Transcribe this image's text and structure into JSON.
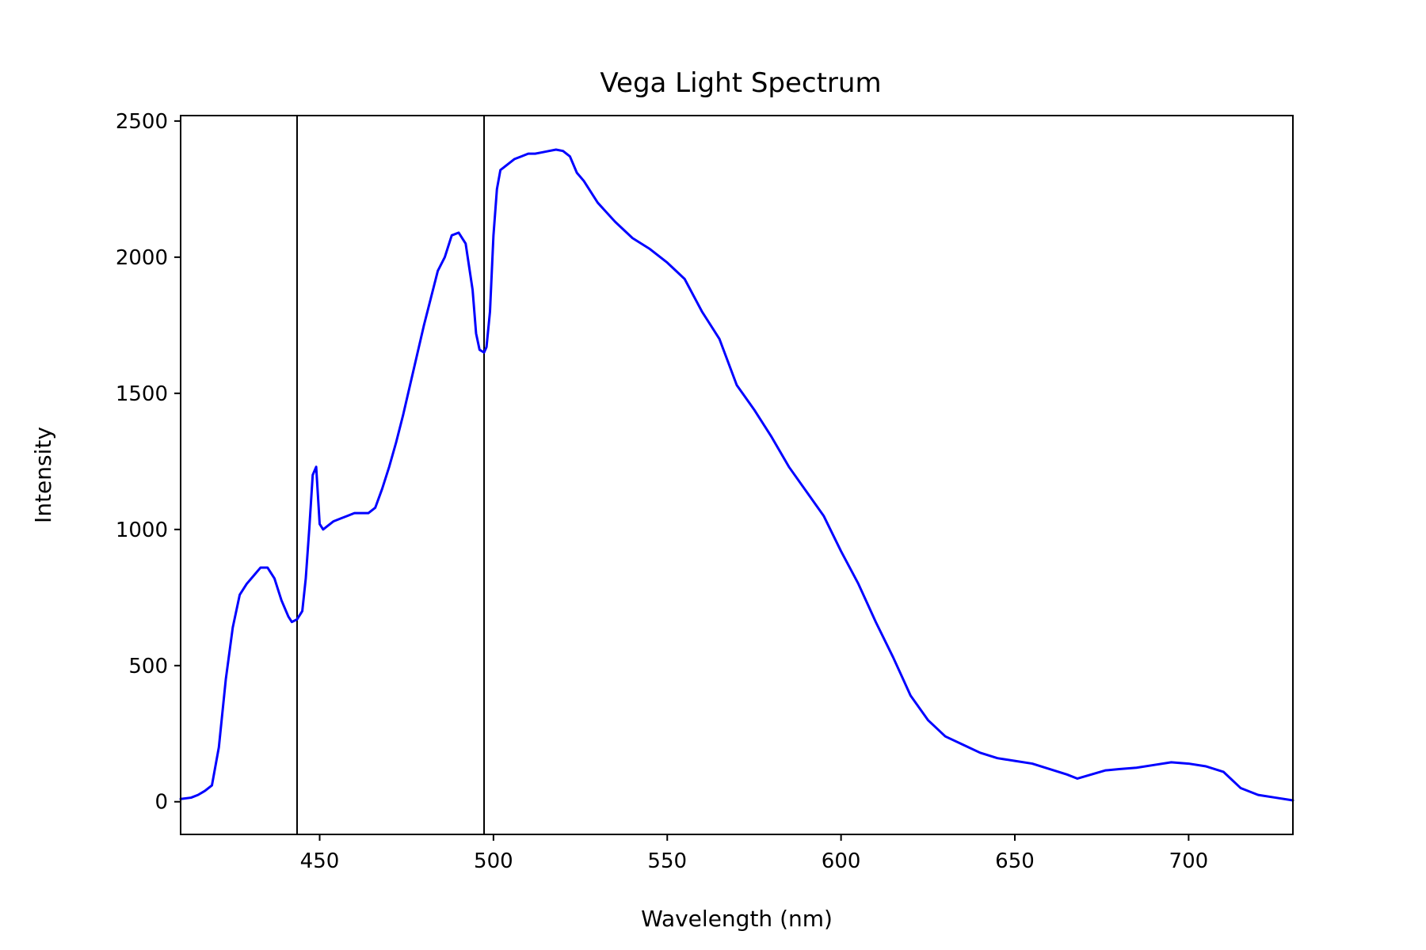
{
  "chart_data": {
    "type": "line",
    "title": "Vega Light Spectrum",
    "xlabel": "Wavelength (nm)",
    "ylabel": "Intensity",
    "xlim": [
      410,
      730
    ],
    "ylim": [
      -120,
      2520
    ],
    "x_ticks": [
      450,
      500,
      550,
      600,
      650,
      700
    ],
    "y_ticks": [
      0,
      500,
      1000,
      1500,
      2000,
      2500
    ],
    "grid": false,
    "legend": "none",
    "vlines": [
      {
        "x": 443.5,
        "color": "#000000"
      },
      {
        "x": 497.3,
        "color": "#000000"
      }
    ],
    "series": [
      {
        "color": "#0000ff",
        "x": [
          410,
          413,
          415,
          417,
          419,
          421,
          423,
          425,
          427,
          429,
          431,
          433,
          435,
          437,
          439,
          441,
          442,
          443.5,
          445,
          446,
          447,
          448,
          449,
          450,
          451,
          452,
          454,
          456,
          458,
          460,
          462,
          464,
          466,
          468,
          470,
          472,
          474,
          476,
          478,
          480,
          482,
          484,
          486,
          488,
          490,
          492,
          494,
          495,
          496,
          497.3,
          498,
          499,
          500,
          501,
          502,
          504,
          506,
          508,
          510,
          512,
          514,
          516,
          518,
          520,
          522,
          524,
          526,
          530,
          535,
          540,
          545,
          550,
          555,
          560,
          565,
          570,
          575,
          580,
          585,
          590,
          595,
          600,
          605,
          610,
          615,
          620,
          625,
          630,
          635,
          640,
          645,
          650,
          655,
          660,
          665,
          668,
          672,
          676,
          680,
          685,
          690,
          695,
          700,
          705,
          710,
          715,
          720,
          725,
          730
        ],
        "values": [
          10,
          15,
          25,
          40,
          60,
          200,
          450,
          640,
          760,
          800,
          830,
          860,
          860,
          820,
          740,
          680,
          660,
          670,
          700,
          820,
          1000,
          1200,
          1230,
          1020,
          1000,
          1010,
          1030,
          1040,
          1050,
          1060,
          1060,
          1060,
          1080,
          1150,
          1230,
          1320,
          1420,
          1530,
          1640,
          1750,
          1850,
          1950,
          2000,
          2080,
          2090,
          2050,
          1880,
          1720,
          1660,
          1650,
          1670,
          1800,
          2080,
          2250,
          2320,
          2340,
          2360,
          2370,
          2380,
          2380,
          2385,
          2390,
          2395,
          2390,
          2370,
          2310,
          2280,
          2200,
          2130,
          2070,
          2030,
          1980,
          1920,
          1800,
          1700,
          1530,
          1440,
          1340,
          1230,
          1140,
          1050,
          920,
          800,
          660,
          530,
          390,
          300,
          240,
          210,
          180,
          160,
          150,
          140,
          120,
          100,
          85,
          100,
          115,
          120,
          125,
          135,
          145,
          140,
          130,
          110,
          50,
          25,
          15,
          5
        ]
      }
    ]
  }
}
